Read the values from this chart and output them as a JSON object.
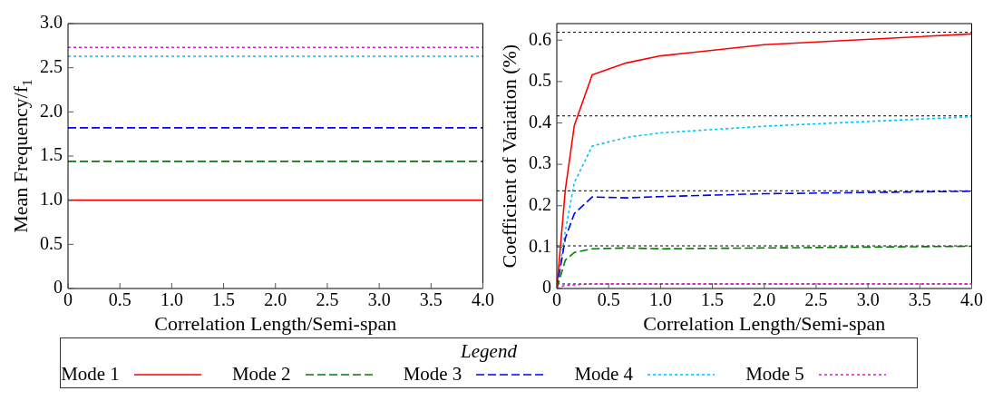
{
  "chart_data": [
    {
      "type": "line",
      "xlabel": "Correlation Length/Semi-span",
      "ylabel": "Mean Frequency/f$_{1}$",
      "legend": "bottom",
      "legend_title": "Legend",
      "grid": false,
      "marker": "none",
      "xlim": [
        0,
        4
      ],
      "xticks": [
        0,
        0.5,
        {
          "value": 1,
          "label": "1.0"
        },
        1.5,
        {
          "value": 2,
          "label": "2.0"
        },
        2.5,
        {
          "value": 3,
          "label": "3.0"
        },
        3.5,
        {
          "value": 4,
          "label": "4.0"
        }
      ],
      "ylim": [
        0,
        3
      ],
      "yticks": [
        0,
        0.5,
        {
          "value": 1,
          "label": "1.0"
        },
        1.5,
        {
          "value": 2,
          "label": "2.0"
        },
        2.5,
        {
          "value": 3,
          "label": "3.0"
        }
      ],
      "series": [
        {
          "name": "Mode 1",
          "color": "#ff0000",
          "line_style": "solid",
          "x": [
            0,
            4
          ],
          "values": [
            1.0,
            1.0
          ]
        },
        {
          "name": "Mode 2",
          "color": "#008000",
          "line_style": "dashed",
          "x": [
            0,
            4
          ],
          "values": [
            1.44,
            1.44
          ]
        },
        {
          "name": "Mode 3",
          "color": "#0000ff",
          "line_style": "dashed",
          "x": [
            0,
            4
          ],
          "values": [
            1.82,
            1.82
          ]
        },
        {
          "name": "Mode 4",
          "color": "#00bfff",
          "line_style": "dotted",
          "x": [
            0,
            4
          ],
          "values": [
            2.63,
            2.63
          ]
        },
        {
          "name": "Mode 5",
          "color": "#ff00ff",
          "line_style": "dotted",
          "x": [
            0,
            4
          ],
          "values": [
            2.73,
            2.73
          ]
        }
      ]
    },
    {
      "type": "line",
      "xlabel": "Correlation Length/Semi-span",
      "ylabel": "Coefficient of Variation (%)",
      "legend": "bottom",
      "grid": false,
      "marker": "none",
      "xlim": [
        0,
        4
      ],
      "xticks": [
        0,
        0.5,
        {
          "value": 1,
          "label": "1.0"
        },
        1.5,
        {
          "value": 2,
          "label": "2.0"
        },
        2.5,
        {
          "value": 3,
          "label": "3.0"
        },
        3.5,
        {
          "value": 4,
          "label": "4.0"
        }
      ],
      "ylim": [
        0,
        0.64
      ],
      "yticks": [
        0,
        0.1,
        0.2,
        0.3,
        0.4,
        0.5,
        0.6
      ],
      "series": [
        {
          "name": "Mode 1",
          "color": "#ff0000",
          "line_style": "solid",
          "x": [
            0,
            0.083,
            0.169,
            0.341,
            0.67,
            1.0,
            2.0,
            4.0
          ],
          "values": [
            0,
            0.24,
            0.394,
            0.516,
            0.545,
            0.562,
            0.589,
            0.615
          ]
        },
        {
          "name": "Mode 2",
          "color": "#008000",
          "line_style": "dashed",
          "x": [
            0,
            0.083,
            0.169,
            0.341,
            0.67,
            1.0,
            2.0,
            4.0
          ],
          "values": [
            0,
            0.069,
            0.087,
            0.096,
            0.098,
            0.096,
            0.098,
            0.102
          ]
        },
        {
          "name": "Mode 3",
          "color": "#0000ff",
          "line_style": "dashed",
          "x": [
            0,
            0.083,
            0.169,
            0.341,
            0.67,
            1.0,
            2.0,
            4.0
          ],
          "values": [
            0,
            0.122,
            0.181,
            0.221,
            0.219,
            0.222,
            0.229,
            0.235
          ]
        },
        {
          "name": "Mode 4",
          "color": "#00bfff",
          "line_style": "dotted",
          "x": [
            0,
            0.083,
            0.169,
            0.341,
            0.67,
            1.0,
            2.0,
            4.0
          ],
          "values": [
            0,
            0.14,
            0.256,
            0.344,
            0.365,
            0.376,
            0.392,
            0.415
          ]
        },
        {
          "name": "Mode 5",
          "color": "#ff00ff",
          "line_style": "dotted",
          "x": [
            0,
            0.083,
            0.341,
            4.0
          ],
          "values": [
            0,
            0.008,
            0.011,
            0.011
          ]
        }
      ],
      "ref_lines": [
        {
          "axis": "y",
          "value": 0.619,
          "color": "#000000",
          "line_style": "dotted"
        },
        {
          "axis": "y",
          "value": 0.417,
          "color": "#000000",
          "line_style": "dotted"
        },
        {
          "axis": "y",
          "value": 0.236,
          "color": "#000000",
          "line_style": "dotted"
        },
        {
          "axis": "y",
          "value": 0.103,
          "color": "#000000",
          "line_style": "dotted"
        },
        {
          "axis": "y",
          "value": 0.011,
          "color": "#000000",
          "line_style": "dotted"
        }
      ]
    }
  ]
}
